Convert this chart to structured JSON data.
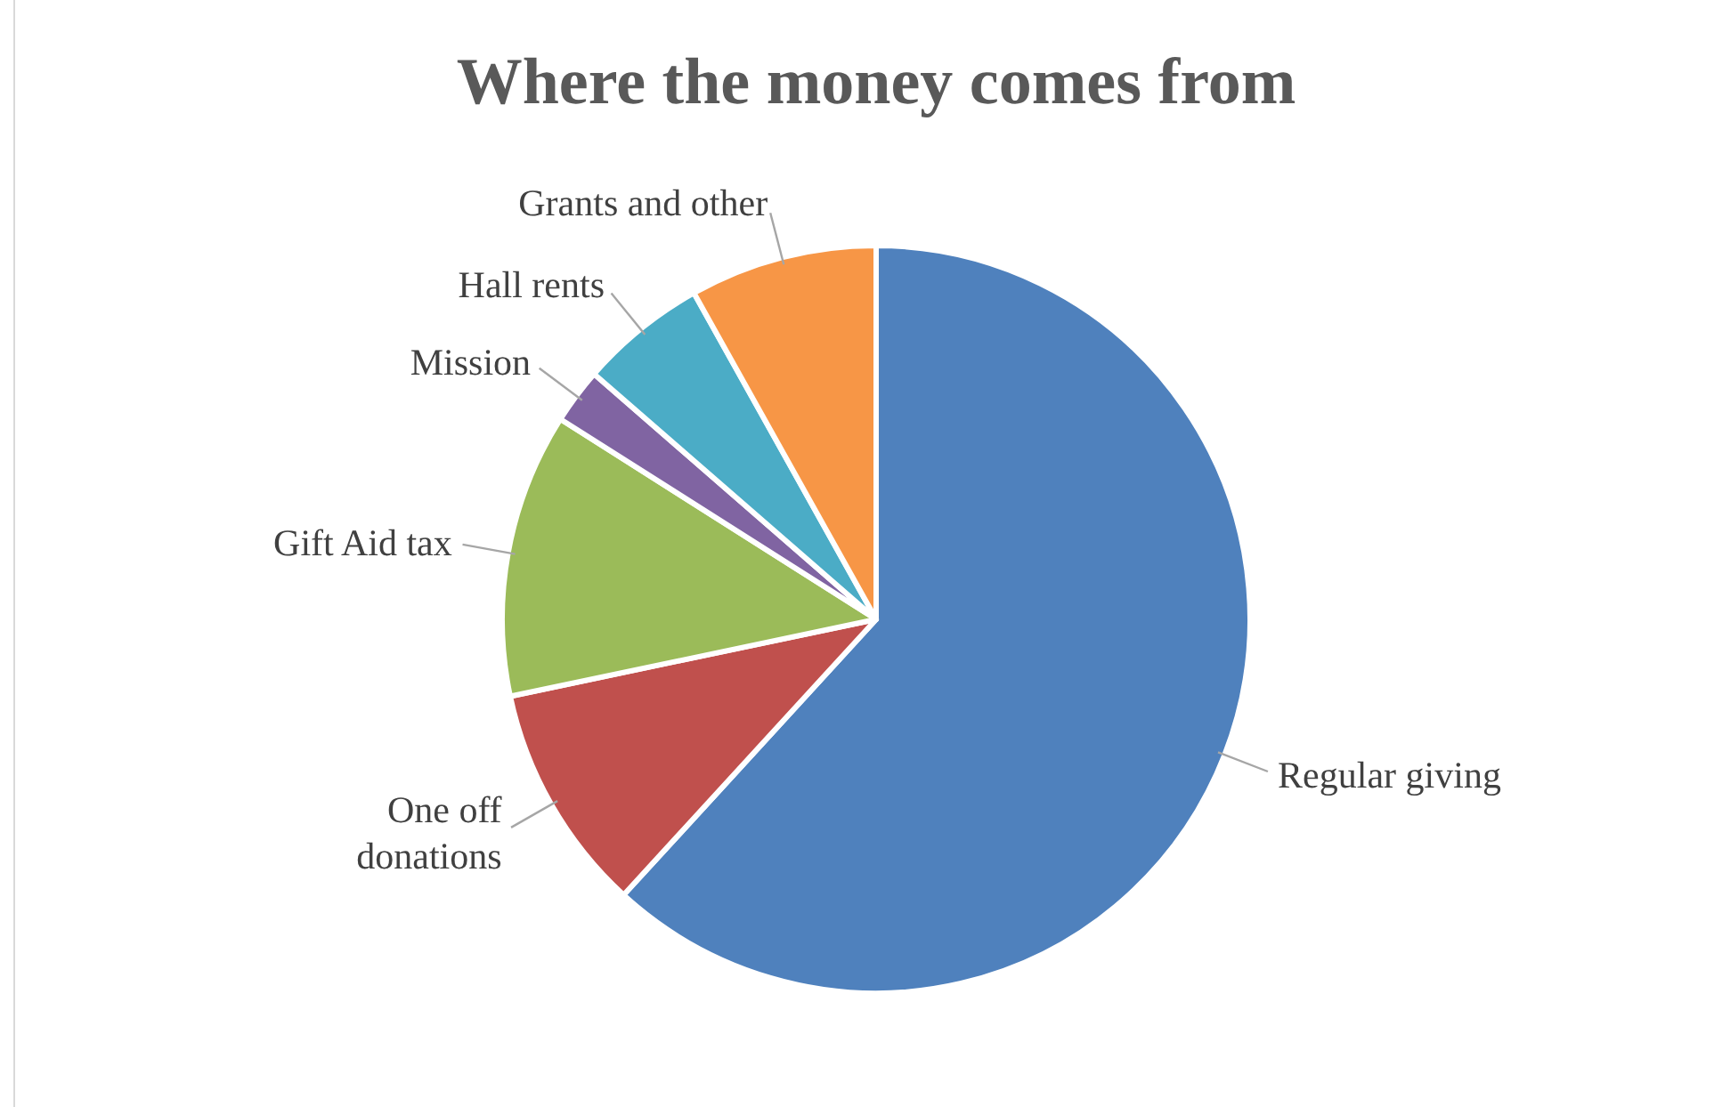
{
  "chart_data": {
    "type": "pie",
    "title": "Where the money comes from",
    "categories": [
      "Regular giving",
      "One off donations",
      "Gift Aid tax",
      "Mission",
      "Hall rents",
      "Grants and other"
    ],
    "values": [
      61.8,
      9.9,
      12.3,
      2.4,
      5.5,
      8.1
    ],
    "colors": [
      "#4f81bd",
      "#c0504d",
      "#9bbb59",
      "#8064a2",
      "#4bacc6",
      "#f79646"
    ],
    "legend": false
  }
}
